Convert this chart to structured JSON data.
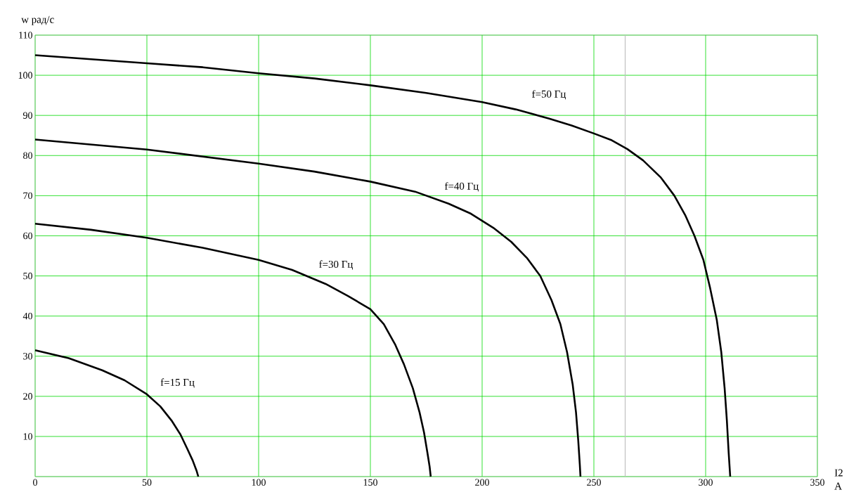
{
  "chart_data": {
    "type": "line",
    "xlabel": "I2 A",
    "ylabel": "w рад/с",
    "xlim": [
      0,
      350
    ],
    "ylim": [
      0,
      110
    ],
    "xticks": [
      0,
      50,
      100,
      150,
      200,
      250,
      300,
      350
    ],
    "yticks": [
      {
        "value": 0,
        "label": null
      },
      10,
      20,
      30,
      40,
      50,
      60,
      70,
      80,
      90,
      100,
      110
    ],
    "grid": true,
    "series": [
      {
        "name": "f=50 Гц",
        "color": "#000000",
        "x": [
          0,
          25,
          50,
          75,
          100,
          125,
          150,
          175,
          200,
          215,
          230,
          240,
          250,
          258,
          265,
          272,
          280,
          286,
          291,
          295,
          299,
          302,
          305,
          307,
          308.5,
          309.5,
          310.3,
          311
        ],
        "values": [
          105,
          104,
          103,
          102,
          100.5,
          99.2,
          97.5,
          95.6,
          93.3,
          91.5,
          89.2,
          87.5,
          85.5,
          83.8,
          81.6,
          78.8,
          74.5,
          70,
          65,
          60,
          54,
          47,
          39,
          31,
          22,
          14,
          6,
          0
        ]
      },
      {
        "name": "f=40 Гц",
        "color": "#000000",
        "x": [
          0,
          50,
          100,
          125,
          150,
          170,
          185,
          195,
          205,
          213,
          220,
          226,
          231,
          235,
          238,
          240.5,
          242,
          243,
          243.7,
          244
        ],
        "values": [
          84,
          81.5,
          78,
          76,
          73.5,
          71,
          68,
          65.5,
          62,
          58.5,
          54.5,
          50,
          44,
          38,
          31,
          23,
          16,
          9,
          3,
          0
        ]
      },
      {
        "name": "f=30 Гц",
        "color": "#000000",
        "x": [
          0,
          25,
          50,
          75,
          100,
          115,
          130,
          140,
          150,
          156,
          161,
          165,
          169,
          172,
          174,
          175.5,
          176.5,
          177
        ],
        "values": [
          63,
          61.5,
          59.5,
          57,
          54,
          51.5,
          48,
          45,
          41.7,
          38,
          33,
          28,
          22,
          16,
          11,
          6,
          2.5,
          0
        ]
      },
      {
        "name": "f=15 Гц",
        "color": "#000000",
        "x": [
          0,
          15,
          30,
          40,
          50,
          56,
          61,
          65,
          68,
          70.5,
          72.2,
          73
        ],
        "values": [
          31.5,
          29.5,
          26.5,
          24,
          20.5,
          17.5,
          14,
          10.5,
          7,
          4,
          1.5,
          0
        ]
      }
    ],
    "ref_lines": [
      {
        "axis": "x",
        "value": 264,
        "color": "#c0c0c0"
      }
    ]
  }
}
